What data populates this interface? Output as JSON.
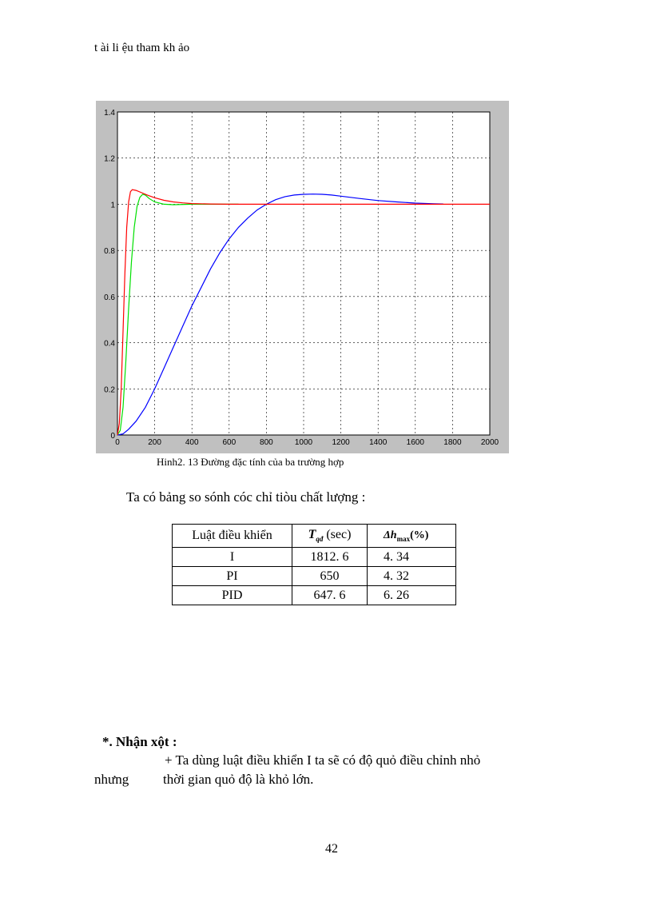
{
  "header": {
    "text": "t ài li ệu tham kh ảo"
  },
  "figure": {
    "caption": "Hinh2.  13 Đường  đặc tính  của ba trường  hợp"
  },
  "chart_data": {
    "type": "line",
    "title": "",
    "xlabel": "",
    "ylabel": "",
    "xlim": [
      0,
      2000
    ],
    "ylim": [
      0,
      1.4
    ],
    "grid": true,
    "xticks": [
      "0",
      "200",
      "400",
      "600",
      "800",
      "1000",
      "1200",
      "1400",
      "1600",
      "1800",
      "2000"
    ],
    "yticks": [
      "0",
      "0.2",
      "0.4",
      "0.6",
      "0.8",
      "1",
      "1.2",
      "1.4"
    ],
    "background": "#ffffff",
    "frame_color": "#c0c0c0",
    "series": [
      {
        "color": "#0000ff",
        "points": [
          [
            0,
            0
          ],
          [
            30,
            0.005
          ],
          [
            60,
            0.025
          ],
          [
            100,
            0.06
          ],
          [
            150,
            0.12
          ],
          [
            200,
            0.2
          ],
          [
            250,
            0.29
          ],
          [
            300,
            0.38
          ],
          [
            350,
            0.47
          ],
          [
            400,
            0.56
          ],
          [
            450,
            0.64
          ],
          [
            500,
            0.72
          ],
          [
            550,
            0.79
          ],
          [
            600,
            0.85
          ],
          [
            650,
            0.9
          ],
          [
            700,
            0.94
          ],
          [
            750,
            0.975
          ],
          [
            800,
            1.0
          ],
          [
            850,
            1.02
          ],
          [
            900,
            1.033
          ],
          [
            950,
            1.04
          ],
          [
            1000,
            1.043
          ],
          [
            1050,
            1.044
          ],
          [
            1100,
            1.043
          ],
          [
            1150,
            1.04
          ],
          [
            1200,
            1.035
          ],
          [
            1300,
            1.025
          ],
          [
            1400,
            1.016
          ],
          [
            1500,
            1.01
          ],
          [
            1600,
            1.005
          ],
          [
            1700,
            1.002
          ],
          [
            1750,
            1.001
          ]
        ]
      },
      {
        "color": "#00e000",
        "points": [
          [
            0,
            0
          ],
          [
            15,
            0.02
          ],
          [
            30,
            0.12
          ],
          [
            45,
            0.32
          ],
          [
            60,
            0.55
          ],
          [
            75,
            0.75
          ],
          [
            90,
            0.9
          ],
          [
            105,
            0.99
          ],
          [
            120,
            1.03
          ],
          [
            135,
            1.043
          ],
          [
            150,
            1.04
          ],
          [
            170,
            1.025
          ],
          [
            200,
            1.01
          ],
          [
            250,
            1.0
          ],
          [
            300,
            0.998
          ],
          [
            400,
            1.0
          ],
          [
            500,
            1.0
          ],
          [
            600,
            1.0
          ],
          [
            650,
            1.0
          ]
        ]
      },
      {
        "color": "#ff0000",
        "points": [
          [
            0,
            0
          ],
          [
            10,
            0.05
          ],
          [
            20,
            0.2
          ],
          [
            30,
            0.45
          ],
          [
            40,
            0.7
          ],
          [
            50,
            0.9
          ],
          [
            60,
            1.01
          ],
          [
            70,
            1.055
          ],
          [
            80,
            1.063
          ],
          [
            100,
            1.06
          ],
          [
            130,
            1.05
          ],
          [
            160,
            1.04
          ],
          [
            200,
            1.028
          ],
          [
            250,
            1.017
          ],
          [
            300,
            1.01
          ],
          [
            350,
            1.006
          ],
          [
            400,
            1.003
          ],
          [
            500,
            1.001
          ],
          [
            600,
            1.0
          ],
          [
            800,
            1.0
          ],
          [
            1000,
            1.0
          ],
          [
            1500,
            1.0
          ],
          [
            2000,
            1.0
          ]
        ]
      }
    ]
  },
  "intro": {
    "text": "Ta có bảng so sónh cóc chỉ tiòu chất lượng :"
  },
  "table": {
    "headers": {
      "col1": "Luật điều khiển",
      "col2_sym": "T",
      "col2_sub": "qđ",
      "col2_unit": " (sec)",
      "col3_sym": "Δh",
      "col3_sub": "max",
      "col3_unit": "(%)"
    },
    "rows": [
      {
        "law": "I",
        "t": "1812. 6",
        "dh": "4. 34"
      },
      {
        "law": "PI",
        "t": "650",
        "dh": "4. 32"
      },
      {
        "law": "PID",
        "t": "647. 6",
        "dh": "6. 26"
      }
    ]
  },
  "remark": {
    "title": "*. Nhận xột :",
    "line1": "+ Ta dùng luật  điều khiển  I ta sẽ có độ quỏ điều  chỉnh nhỏ",
    "line2a": "nhưng",
    "line2b": "thời gian  quỏ độ là khỏ lớn."
  },
  "page_number": "42"
}
